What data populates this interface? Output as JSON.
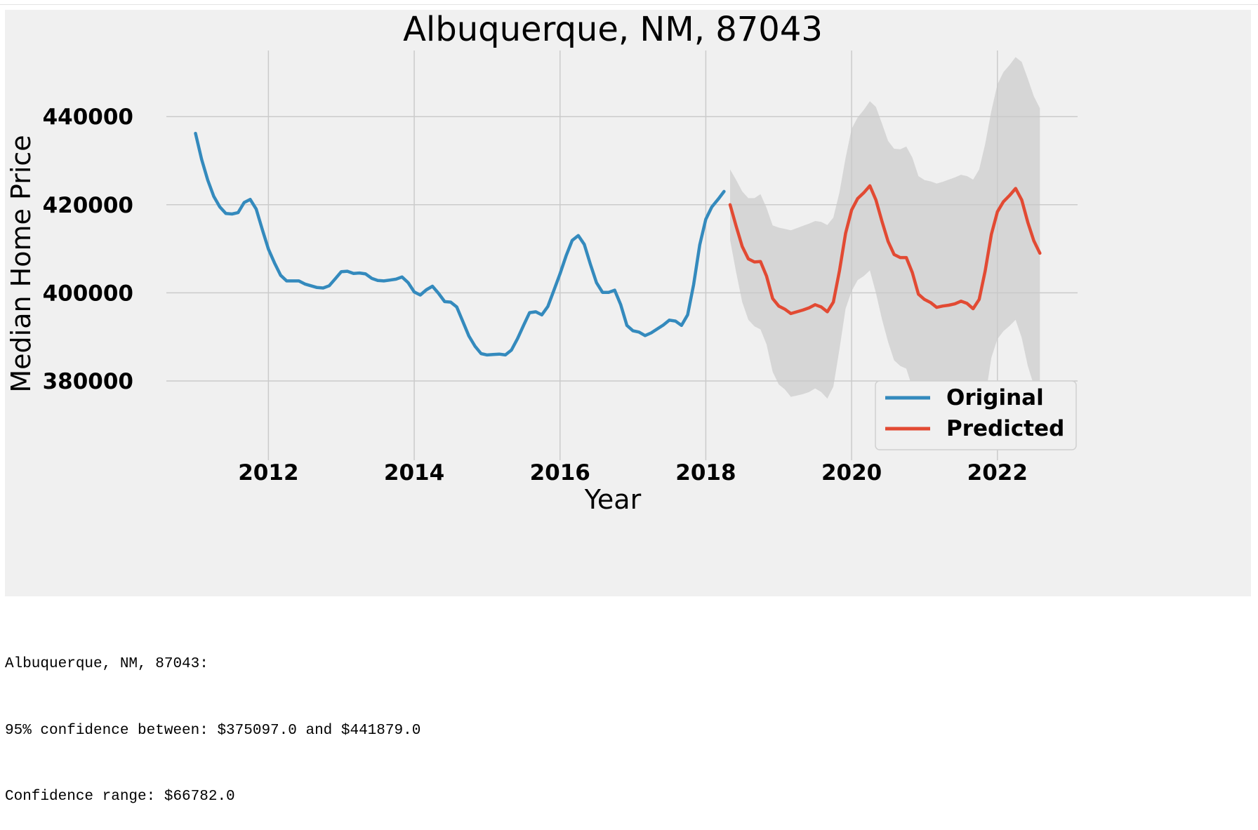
{
  "chart_data": {
    "type": "line",
    "title": "Albuquerque, NM, 87043",
    "xlabel": "Year",
    "ylabel": "Median Home Price",
    "xlim": [
      2010.6,
      2023.1
    ],
    "ylim": [
      362000,
      455000
    ],
    "xticks": [
      2012,
      2014,
      2016,
      2018,
      2020,
      2022
    ],
    "yticks": [
      380000,
      400000,
      420000,
      440000
    ],
    "grid": true,
    "legend_position": "lower-right",
    "series": [
      {
        "name": "Original",
        "color": "#348ABD",
        "x": [
          2011.0,
          2011.083,
          2011.167,
          2011.25,
          2011.333,
          2011.417,
          2011.5,
          2011.583,
          2011.667,
          2011.75,
          2011.833,
          2011.917,
          2012.0,
          2012.083,
          2012.167,
          2012.25,
          2012.333,
          2012.417,
          2012.5,
          2012.583,
          2012.667,
          2012.75,
          2012.833,
          2012.917,
          2013.0,
          2013.083,
          2013.167,
          2013.25,
          2013.333,
          2013.417,
          2013.5,
          2013.583,
          2013.667,
          2013.75,
          2013.833,
          2013.917,
          2014.0,
          2014.083,
          2014.167,
          2014.25,
          2014.333,
          2014.417,
          2014.5,
          2014.583,
          2014.667,
          2014.75,
          2014.833,
          2014.917,
          2015.0,
          2015.083,
          2015.167,
          2015.25,
          2015.333,
          2015.417,
          2015.5,
          2015.583,
          2015.667,
          2015.75,
          2015.833,
          2015.917,
          2016.0,
          2016.083,
          2016.167,
          2016.25,
          2016.333,
          2016.417,
          2016.5,
          2016.583,
          2016.667,
          2016.75,
          2016.833,
          2016.917,
          2017.0,
          2017.083,
          2017.167,
          2017.25,
          2017.333,
          2017.417,
          2017.5,
          2017.583,
          2017.667,
          2017.75,
          2017.833,
          2017.917,
          2018.0,
          2018.083,
          2018.167,
          2018.25
        ],
        "y": [
          436200,
          430300,
          425600,
          421900,
          419500,
          418000,
          417900,
          418200,
          420500,
          421200,
          419000,
          414300,
          409900,
          406800,
          404000,
          402700,
          402700,
          402700,
          402000,
          401600,
          401200,
          401100,
          401600,
          403200,
          404800,
          404900,
          404400,
          404500,
          404300,
          403300,
          402800,
          402700,
          402900,
          403100,
          403600,
          402300,
          400200,
          399500,
          400700,
          401500,
          399900,
          398000,
          397900,
          396800,
          393500,
          390200,
          387900,
          386200,
          385900,
          386000,
          386100,
          385900,
          387000,
          389600,
          392600,
          395500,
          395700,
          395000,
          396900,
          400600,
          404300,
          408400,
          411900,
          413000,
          411000,
          406500,
          402300,
          400100,
          400100,
          400600,
          397300,
          392600,
          391400,
          391100,
          390300,
          390900,
          391800,
          392700,
          393800,
          393600,
          392600,
          395000,
          401900,
          410900,
          416700,
          419500,
          421200,
          423000
        ]
      },
      {
        "name": "Predicted",
        "color": "#E24A33",
        "x": [
          2018.333,
          2018.417,
          2018.5,
          2018.583,
          2018.667,
          2018.75,
          2018.833,
          2018.917,
          2019.0,
          2019.083,
          2019.167,
          2019.25,
          2019.333,
          2019.417,
          2019.5,
          2019.583,
          2019.667,
          2019.75,
          2019.833,
          2019.917,
          2020.0,
          2020.083,
          2020.167,
          2020.25,
          2020.333,
          2020.417,
          2020.5,
          2020.583,
          2020.667,
          2020.75,
          2020.833,
          2020.917,
          2021.0,
          2021.083,
          2021.167,
          2021.25,
          2021.333,
          2021.417,
          2021.5,
          2021.583,
          2021.667,
          2021.75,
          2021.833,
          2021.917,
          2022.0,
          2022.083,
          2022.167,
          2022.25,
          2022.333,
          2022.417,
          2022.5,
          2022.583
        ],
        "y": [
          420000,
          415100,
          410500,
          407700,
          407000,
          407100,
          403800,
          398700,
          397000,
          396300,
          395300,
          395700,
          396100,
          396600,
          397300,
          396800,
          395700,
          397900,
          405000,
          413500,
          418800,
          421400,
          422700,
          424300,
          421100,
          416200,
          411700,
          408700,
          408000,
          408000,
          404600,
          399700,
          398500,
          397800,
          396700,
          397000,
          397200,
          397500,
          398100,
          397600,
          396400,
          398500,
          405000,
          413300,
          418400,
          420700,
          422100,
          423700,
          421100,
          416000,
          411800,
          409000
        ]
      }
    ],
    "confidence_band": {
      "color": "#c8c8c8",
      "x": [
        2018.333,
        2018.417,
        2018.5,
        2018.583,
        2018.667,
        2018.75,
        2018.833,
        2018.917,
        2019.0,
        2019.083,
        2019.167,
        2019.25,
        2019.333,
        2019.417,
        2019.5,
        2019.583,
        2019.667,
        2019.75,
        2019.833,
        2019.917,
        2020.0,
        2020.083,
        2020.167,
        2020.25,
        2020.333,
        2020.417,
        2020.5,
        2020.583,
        2020.667,
        2020.75,
        2020.833,
        2020.917,
        2021.0,
        2021.083,
        2021.167,
        2021.25,
        2021.333,
        2021.417,
        2021.5,
        2021.583,
        2021.667,
        2021.75,
        2021.833,
        2021.917,
        2022.0,
        2022.083,
        2022.167,
        2022.25,
        2022.333,
        2022.417,
        2022.5,
        2022.583
      ],
      "upper": [
        428000,
        425600,
        423000,
        421500,
        421500,
        422400,
        419300,
        415300,
        414800,
        414500,
        414200,
        414700,
        415200,
        415700,
        416300,
        416100,
        415400,
        417100,
        422800,
        430600,
        437200,
        439800,
        441500,
        443500,
        442200,
        438400,
        434500,
        432700,
        432600,
        433200,
        430700,
        426500,
        425600,
        425300,
        424800,
        425200,
        425700,
        426200,
        426800,
        426500,
        425700,
        428000,
        433800,
        441300,
        447300,
        450100,
        451700,
        453500,
        452400,
        448600,
        444600,
        441900
      ],
      "lower": [
        412000,
        404600,
        397900,
        393900,
        392400,
        391700,
        388300,
        382100,
        379200,
        378100,
        376400,
        376700,
        377000,
        377500,
        378300,
        377500,
        376000,
        378700,
        387200,
        396400,
        400400,
        402900,
        403800,
        405100,
        400000,
        394000,
        388900,
        384700,
        383400,
        382800,
        378500,
        372900,
        371400,
        370300,
        368600,
        368800,
        368700,
        368800,
        369400,
        368700,
        367100,
        369000,
        376200,
        385300,
        389500,
        391300,
        392500,
        393900,
        389800,
        383400,
        379000,
        376100
      ]
    }
  },
  "output_lines": [
    "Albuquerque, NM, 87043:",
    "95% confidence between: $375097.0 and $441879.0",
    "Confidence range: $66782.0"
  ]
}
